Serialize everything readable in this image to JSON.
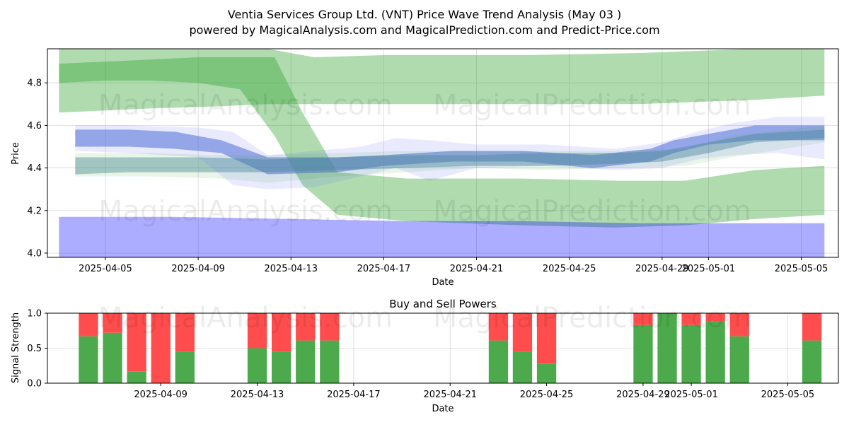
{
  "titles": {
    "line1": "Ventia Services Group Ltd. (VNT) Price Wave Trend Analysis (May 03 )",
    "line2": "powered by MagicalAnalysis.com and MagicalPrediction.com and Predict-Price.com"
  },
  "watermarks": [
    "MagicalAnalysis.com",
    "MagicalPrediction.com"
  ],
  "colors": {
    "green": "#2ca02c",
    "blue": "#0000ff",
    "buy": "#4caa4c",
    "sell": "#ff4d4d"
  },
  "chart_data": [
    {
      "type": "area",
      "title": "",
      "xlabel": "Date",
      "ylabel": "Price",
      "ylim": [
        3.98,
        4.96
      ],
      "y_ticks": [
        "4.0",
        "4.2",
        "4.4",
        "4.6",
        "4.8"
      ],
      "y_tick_values": [
        4.0,
        4.2,
        4.4,
        4.6,
        4.8
      ],
      "x_ticks": [
        "2025-04-05",
        "2025-04-09",
        "2025-04-13",
        "2025-04-17",
        "2025-04-21",
        "2025-04-25",
        "2025-04-29",
        "2025-05-01",
        "2025-05-05"
      ],
      "x_tick_day_index": [
        2,
        6,
        10,
        14,
        18,
        22,
        26,
        28,
        32
      ],
      "day_range": [
        -0.5,
        33.6
      ],
      "grid": true,
      "series": [
        {
          "name": "green wave upper band",
          "color": "#2ca02c",
          "opacity": 0.38,
          "x": [
            0,
            4,
            7,
            9,
            11,
            14,
            20,
            25,
            30,
            33
          ],
          "lower": [
            4.66,
            4.68,
            4.69,
            4.7,
            4.7,
            4.7,
            4.7,
            4.7,
            4.72,
            4.74
          ],
          "upper": [
            4.99,
            4.99,
            4.99,
            4.99,
            4.92,
            4.93,
            4.93,
            4.94,
            4.96,
            4.97
          ]
        },
        {
          "name": "green wave falling band",
          "color": "#2ca02c",
          "opacity": 0.38,
          "x": [
            0,
            2,
            4,
            6,
            7.8,
            9.3,
            10.5,
            12,
            15,
            20,
            24,
            27,
            30,
            33
          ],
          "lower": [
            4.8,
            4.81,
            4.81,
            4.8,
            4.77,
            4.55,
            4.32,
            4.18,
            4.15,
            4.13,
            4.12,
            4.13,
            4.16,
            4.18
          ],
          "upper": [
            4.89,
            4.9,
            4.91,
            4.92,
            4.92,
            4.92,
            4.66,
            4.38,
            4.35,
            4.35,
            4.34,
            4.34,
            4.39,
            4.41
          ]
        },
        {
          "name": "blue wave lower band",
          "color": "#0000ff",
          "opacity": 0.32,
          "x": [
            0,
            5,
            10,
            15,
            20,
            25,
            30,
            33
          ],
          "lower": [
            3.97,
            3.97,
            3.97,
            3.97,
            3.97,
            3.97,
            3.97,
            3.97
          ],
          "upper": [
            4.17,
            4.17,
            4.16,
            4.15,
            4.15,
            4.14,
            4.14,
            4.14
          ]
        },
        {
          "name": "blue wave main band",
          "color": "#4d6fd0",
          "opacity": 0.55,
          "x": [
            0.7,
            3,
            5,
            7,
            9,
            12,
            14,
            17,
            20,
            23,
            25.5,
            26.5,
            28,
            30,
            33
          ],
          "lower": [
            4.5,
            4.5,
            4.49,
            4.47,
            4.37,
            4.38,
            4.41,
            4.43,
            4.43,
            4.4,
            4.43,
            4.47,
            4.51,
            4.53,
            4.53
          ],
          "upper": [
            4.58,
            4.58,
            4.57,
            4.53,
            4.45,
            4.45,
            4.46,
            4.48,
            4.48,
            4.46,
            4.49,
            4.53,
            4.56,
            4.6,
            4.6
          ]
        },
        {
          "name": "teal wave band",
          "color": "#4d8ca0",
          "opacity": 0.45,
          "x": [
            0.7,
            3,
            6,
            9,
            12,
            15,
            18,
            21,
            24,
            26,
            28,
            30,
            33
          ],
          "lower": [
            4.37,
            4.38,
            4.38,
            4.38,
            4.39,
            4.4,
            4.41,
            4.41,
            4.42,
            4.43,
            4.47,
            4.52,
            4.54
          ],
          "upper": [
            4.45,
            4.45,
            4.45,
            4.44,
            4.45,
            4.46,
            4.46,
            4.47,
            4.47,
            4.48,
            4.52,
            4.56,
            4.58
          ]
        },
        {
          "name": "blue faint spread band",
          "color": "#6a6aff",
          "opacity": 0.14,
          "x": [
            0.7,
            3,
            6,
            7.5,
            9,
            11,
            13,
            14.5,
            16,
            18,
            21,
            24,
            26,
            27.5,
            29,
            31,
            33
          ],
          "lower": [
            4.48,
            4.47,
            4.45,
            4.32,
            4.3,
            4.31,
            4.36,
            4.4,
            4.34,
            4.4,
            4.41,
            4.39,
            4.4,
            4.44,
            4.46,
            4.47,
            4.44
          ],
          "upper": [
            4.6,
            4.6,
            4.59,
            4.57,
            4.46,
            4.48,
            4.5,
            4.54,
            4.53,
            4.51,
            4.51,
            4.49,
            4.52,
            4.57,
            4.61,
            4.64,
            4.64
          ]
        },
        {
          "name": "green faint spread band",
          "color": "#2ca02c",
          "opacity": 0.1,
          "x": [
            0.7,
            4,
            7,
            9,
            12,
            15,
            18,
            21,
            24,
            27,
            29,
            33
          ],
          "lower": [
            4.36,
            4.36,
            4.35,
            4.33,
            4.36,
            4.38,
            4.4,
            4.39,
            4.4,
            4.41,
            4.45,
            4.52
          ],
          "upper": [
            4.47,
            4.47,
            4.46,
            4.46,
            4.47,
            4.48,
            4.48,
            4.48,
            4.48,
            4.49,
            4.55,
            4.6
          ]
        }
      ]
    },
    {
      "type": "bar",
      "title": "Buy and Sell Powers",
      "xlabel": "Date",
      "ylabel": "Signal Strength",
      "ylim": [
        0,
        1
      ],
      "y_ticks": [
        "0.0",
        "0.5",
        "1.0"
      ],
      "y_tick_values": [
        0.0,
        0.5,
        1.0
      ],
      "x_ticks": [
        "2025-04-09",
        "2025-04-13",
        "2025-04-17",
        "2025-04-21",
        "2025-04-25",
        "2025-04-29",
        "2025-05-01",
        "2025-05-05"
      ],
      "x_tick_day_index": [
        6,
        10,
        14,
        18,
        22,
        26,
        28,
        32
      ],
      "day_range": [
        1.3,
        34.1
      ],
      "grid": true,
      "series": [
        {
          "name": "Buy",
          "color": "#4caa4c",
          "x": [
            3,
            4,
            5,
            6,
            7,
            10,
            11,
            12,
            13,
            20,
            21,
            22,
            26,
            27,
            28,
            29,
            30,
            33
          ],
          "values": [
            0.67,
            0.72,
            0.17,
            0.0,
            0.45,
            0.5,
            0.45,
            0.61,
            0.61,
            0.61,
            0.45,
            0.28,
            0.83,
            1.0,
            0.83,
            0.88,
            0.67,
            0.61
          ]
        },
        {
          "name": "Sell",
          "color": "#ff4d4d",
          "x": [
            3,
            4,
            5,
            6,
            7,
            10,
            11,
            12,
            13,
            20,
            21,
            22,
            26,
            27,
            28,
            29,
            30,
            33
          ],
          "values": [
            0.33,
            0.28,
            0.83,
            1.0,
            0.55,
            0.5,
            0.55,
            0.39,
            0.39,
            0.39,
            0.55,
            0.72,
            0.17,
            0.0,
            0.17,
            0.12,
            0.33,
            0.39
          ]
        }
      ]
    }
  ]
}
